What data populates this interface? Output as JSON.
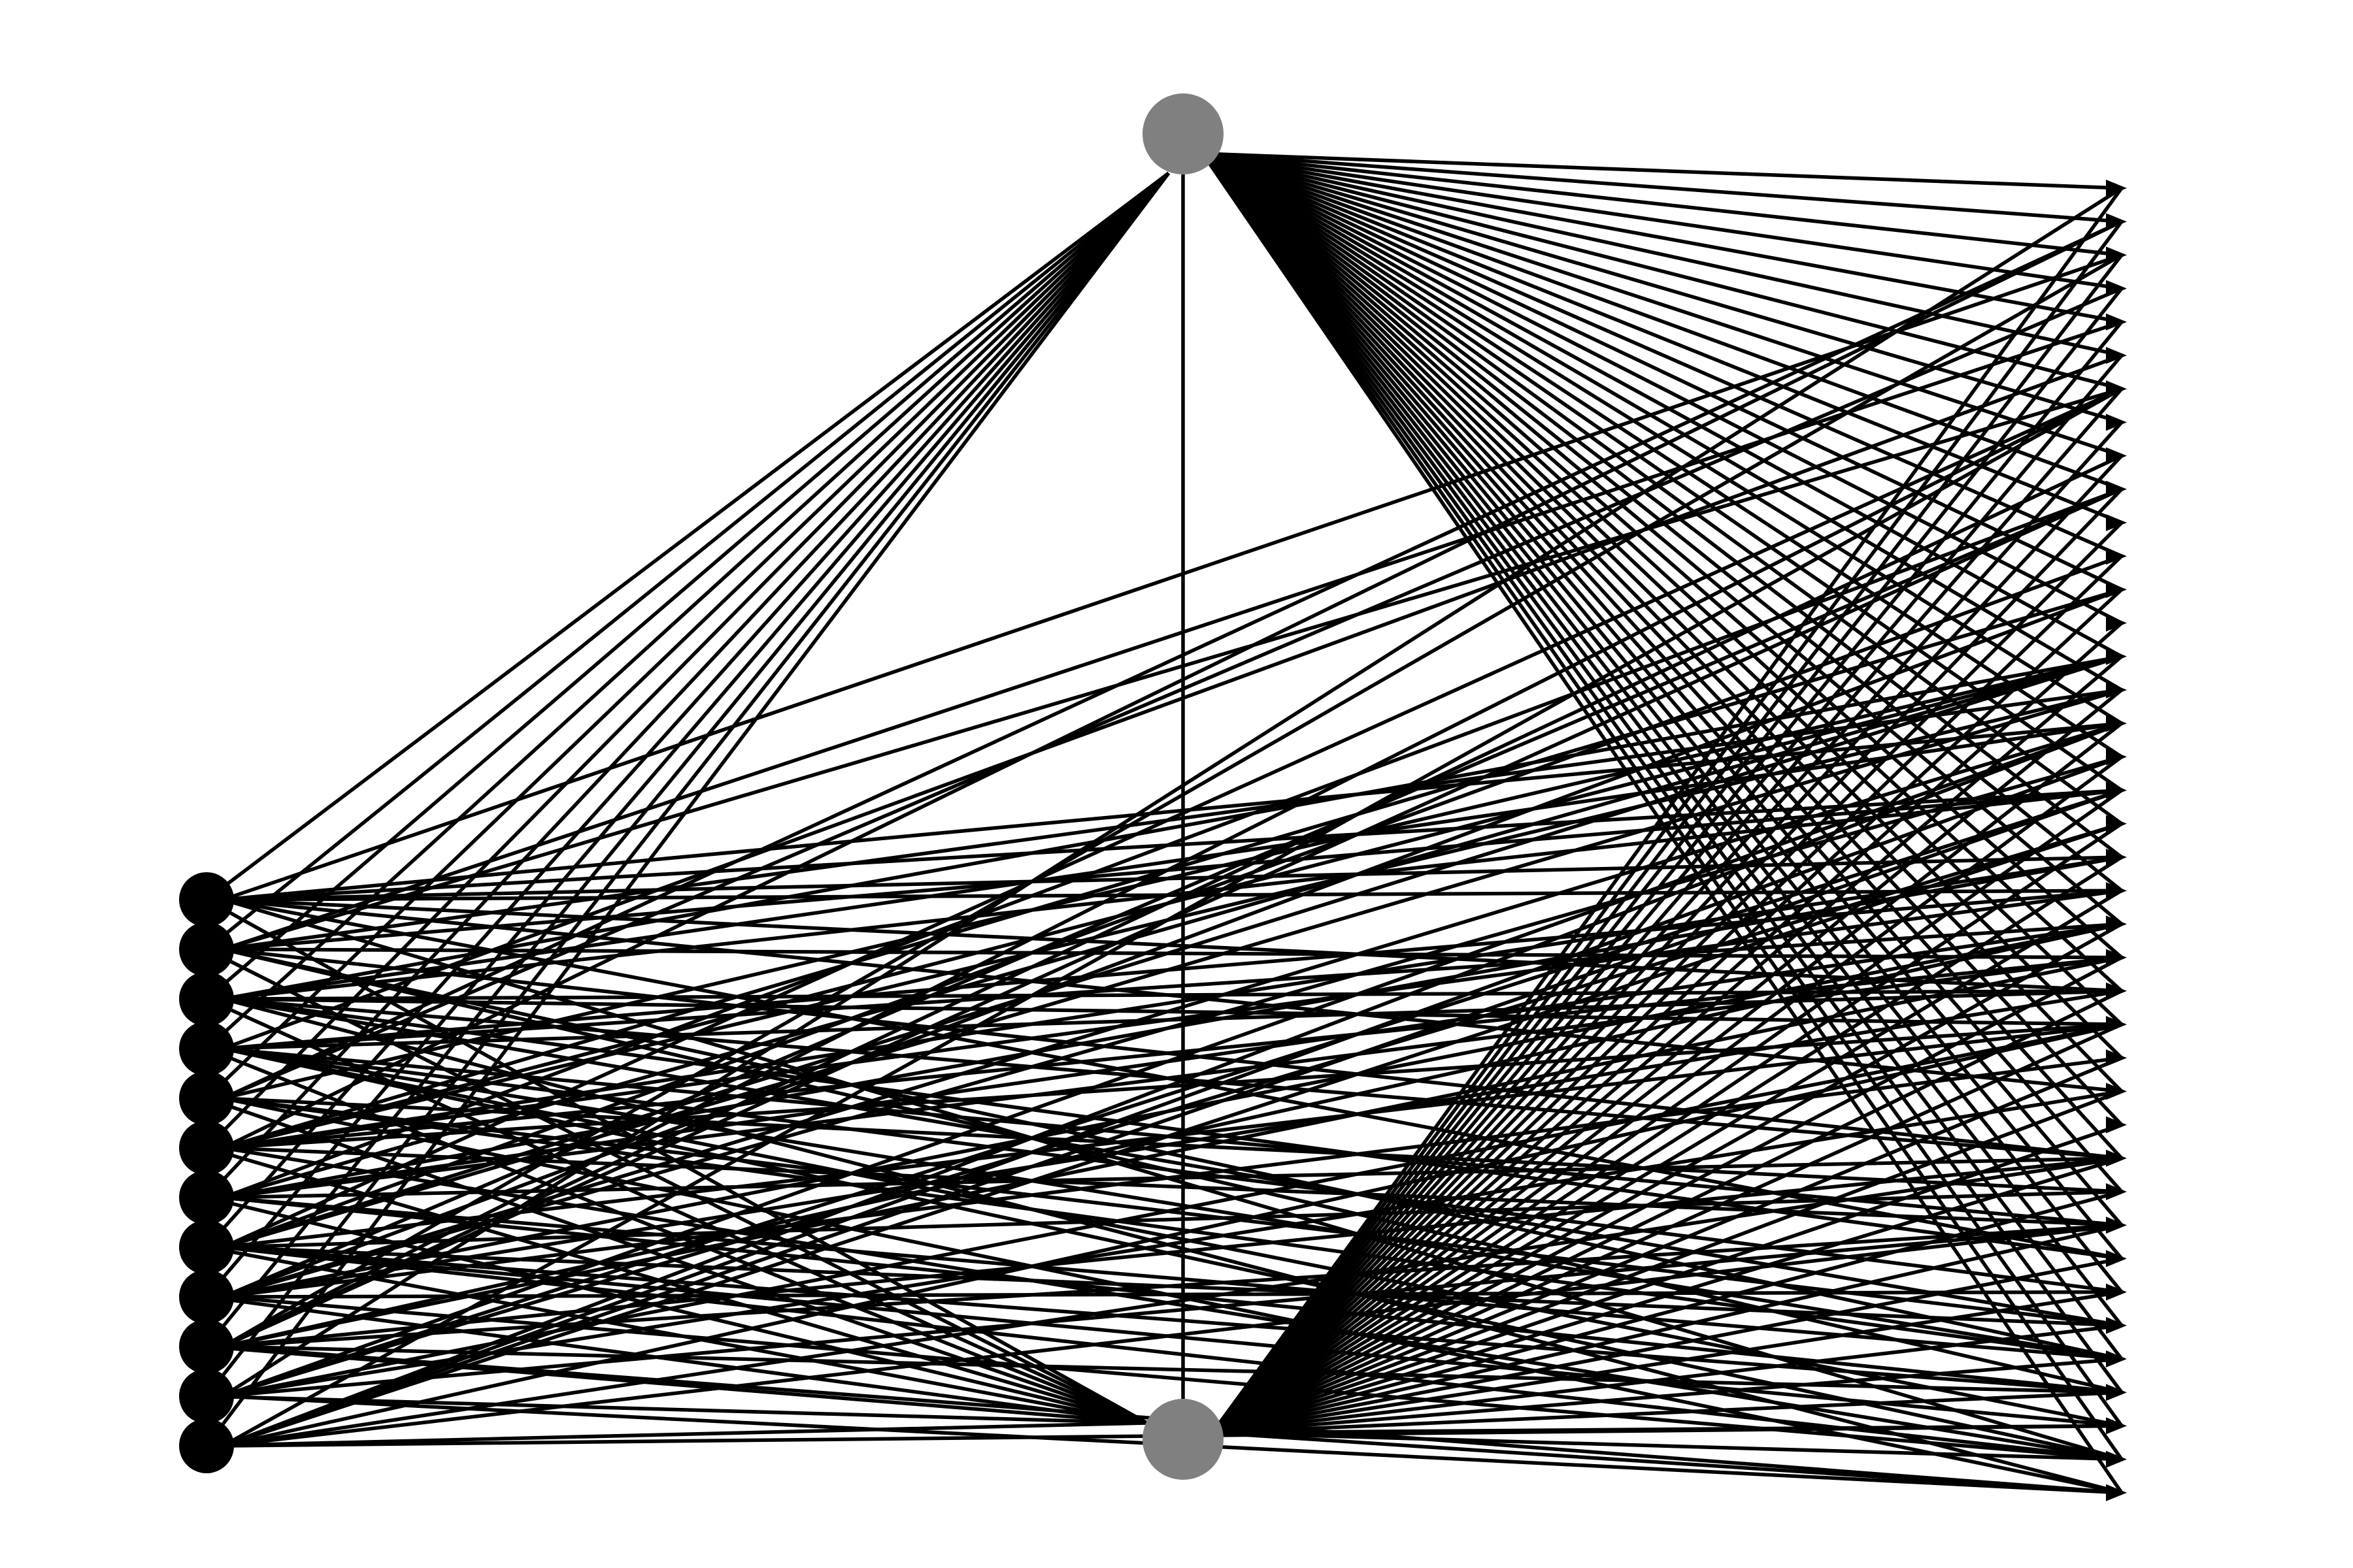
{
  "graph": {
    "type": "layered-directed-network",
    "colors": {
      "background": "#ffffff",
      "edge": "#000000",
      "source_node": "#000000",
      "hub_node": "#808080",
      "sink_arrowhead": "#000000"
    },
    "layers": {
      "sources": {
        "count": 12,
        "shape": "filled-circle"
      },
      "hubs": {
        "count": 2,
        "names": [
          "top-hub",
          "bottom-hub"
        ],
        "shape": "filled-circle"
      },
      "sinks": {
        "count": 40,
        "shape": "arrowhead"
      }
    },
    "edge_groups": [
      {
        "from": "sources",
        "to": "top-hub",
        "count": 12
      },
      {
        "from": "sources",
        "to": "bottom-hub",
        "count": 12
      },
      {
        "from": "bottom-hub",
        "to": "top-hub",
        "count": 1
      },
      {
        "from": "top-hub",
        "to": "sinks",
        "count": 40
      },
      {
        "from": "bottom-hub",
        "to": "sinks",
        "count": 40
      },
      {
        "from": "sources",
        "to": "sinks",
        "pattern": "dense-cross",
        "per_source_approx": 10
      }
    ]
  }
}
